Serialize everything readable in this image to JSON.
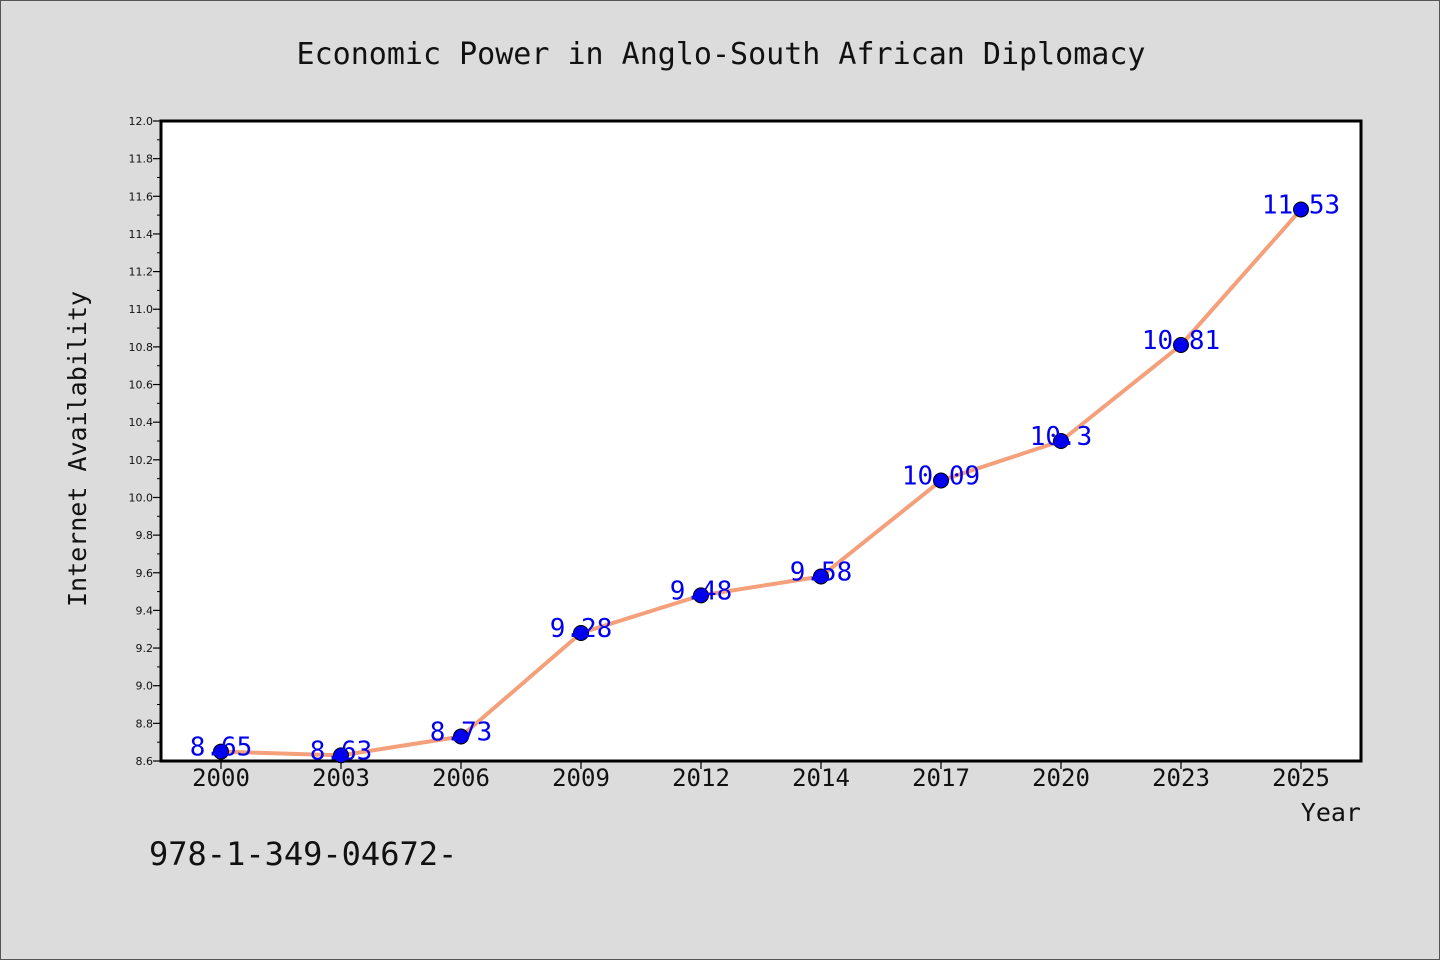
{
  "chart_data": {
    "type": "line",
    "title": "Economic Power in Anglo-South African Diplomacy",
    "xlabel": "Year",
    "ylabel": "Internet Availability",
    "categories": [
      "2000",
      "2003",
      "2006",
      "2009",
      "2012",
      "2014",
      "2017",
      "2020",
      "2023",
      "2025"
    ],
    "series": [
      {
        "values": [
          8.65,
          8.63,
          8.73,
          9.28,
          9.48,
          9.58,
          10.09,
          10.3,
          10.81,
          11.53
        ],
        "data_labels": [
          "8.65",
          "8.63",
          "8.73",
          "9.28",
          "9.48",
          "9.58",
          "10.09",
          "10.3",
          "10.81",
          "11.53"
        ],
        "line_color": "#f4a07a",
        "marker_color": "#0000ee"
      }
    ],
    "ylim": [
      8.6,
      12.0
    ],
    "yticks": [
      "8.6",
      "8.8",
      "9.0",
      "9.2",
      "9.4",
      "9.6",
      "9.8",
      "10.0",
      "10.2",
      "10.4",
      "10.6",
      "10.8",
      "11.0",
      "11.2",
      "11.4",
      "11.6",
      "11.8",
      "12.0"
    ],
    "grid": false,
    "legend": "none"
  },
  "footer": {
    "text": "978-1-349-04672-"
  }
}
